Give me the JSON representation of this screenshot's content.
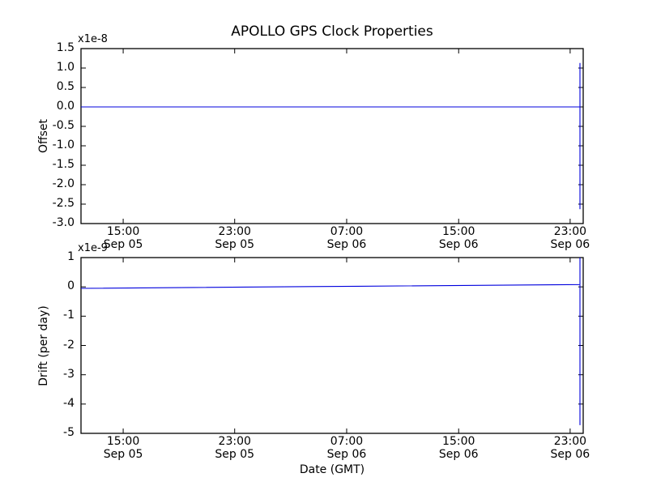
{
  "figure": {
    "title": "APOLLO GPS Clock Properties",
    "background": "#ffffff",
    "axis_color": "#000000",
    "line_color": "#0000dd"
  },
  "chart_data": [
    {
      "type": "line",
      "name": "offset",
      "title": "APOLLO GPS Clock Properties",
      "ylabel": "Offset",
      "xlabel": "",
      "offset_text": "x1e-8",
      "units_scale": "1e-8",
      "ylim": [
        -3.0,
        1.5
      ],
      "grid": false,
      "legend": "none",
      "yticks": [
        {
          "v": 1.5,
          "label": "1.5"
        },
        {
          "v": 1.0,
          "label": "1.0"
        },
        {
          "v": 0.5,
          "label": "0.5"
        },
        {
          "v": 0.0,
          "label": "0.0"
        },
        {
          "v": -0.5,
          "label": "-0.5"
        },
        {
          "v": -1.0,
          "label": "-1.0"
        },
        {
          "v": -1.5,
          "label": "-1.5"
        },
        {
          "v": -2.0,
          "label": "-2.0"
        },
        {
          "v": -2.5,
          "label": "-2.5"
        },
        {
          "v": -3.0,
          "label": "-3.0"
        }
      ],
      "xticks": [
        {
          "frac": 0.084,
          "time": "15:00",
          "date": "Sep 05"
        },
        {
          "frac": 0.306,
          "time": "23:00",
          "date": "Sep 05"
        },
        {
          "frac": 0.529,
          "time": "07:00",
          "date": "Sep 06"
        },
        {
          "frac": 0.752,
          "time": "15:00",
          "date": "Sep 06"
        },
        {
          "frac": 0.974,
          "time": "23:00",
          "date": "Sep 06"
        }
      ],
      "series": [
        {
          "name": "clock offset",
          "note": "flat at 0.0 (x1e-8) across full time span; vertical excursion near right edge from +1.13e-8 down to -2.63e-8",
          "points": [
            [
              0.0,
              0.0
            ],
            [
              0.9935,
              0.0
            ],
            [
              0.9935,
              1.13
            ],
            [
              0.9935,
              -2.63
            ]
          ]
        }
      ]
    },
    {
      "type": "line",
      "name": "drift",
      "title": "",
      "ylabel": "Drift (per day)",
      "xlabel": "Date (GMT)",
      "offset_text": "x1e-9",
      "units_scale": "1e-9",
      "ylim": [
        -5,
        1
      ],
      "grid": false,
      "legend": "none",
      "yticks": [
        {
          "v": 1,
          "label": "1"
        },
        {
          "v": 0,
          "label": "0"
        },
        {
          "v": -1,
          "label": "-1"
        },
        {
          "v": -2,
          "label": "-2"
        },
        {
          "v": -3,
          "label": "-3"
        },
        {
          "v": -4,
          "label": "-4"
        },
        {
          "v": -5,
          "label": "-5"
        }
      ],
      "xticks": [
        {
          "frac": 0.084,
          "time": "15:00",
          "date": "Sep 05"
        },
        {
          "frac": 0.306,
          "time": "23:00",
          "date": "Sep 05"
        },
        {
          "frac": 0.529,
          "time": "07:00",
          "date": "Sep 06"
        },
        {
          "frac": 0.752,
          "time": "15:00",
          "date": "Sep 06"
        },
        {
          "frac": 0.974,
          "time": "23:00",
          "date": "Sep 06"
        }
      ],
      "series": [
        {
          "name": "clock drift",
          "note": "near 0 (x1e-9) with very slight upward drift left to right; vertical excursion near right edge from +1.0e-9 (clipped at axis top) down to -4.72e-9",
          "points": [
            [
              0.0,
              -0.05
            ],
            [
              0.55,
              0.02
            ],
            [
              0.9935,
              0.08
            ],
            [
              0.9935,
              1.0
            ],
            [
              0.9935,
              -4.72
            ]
          ]
        }
      ]
    }
  ]
}
